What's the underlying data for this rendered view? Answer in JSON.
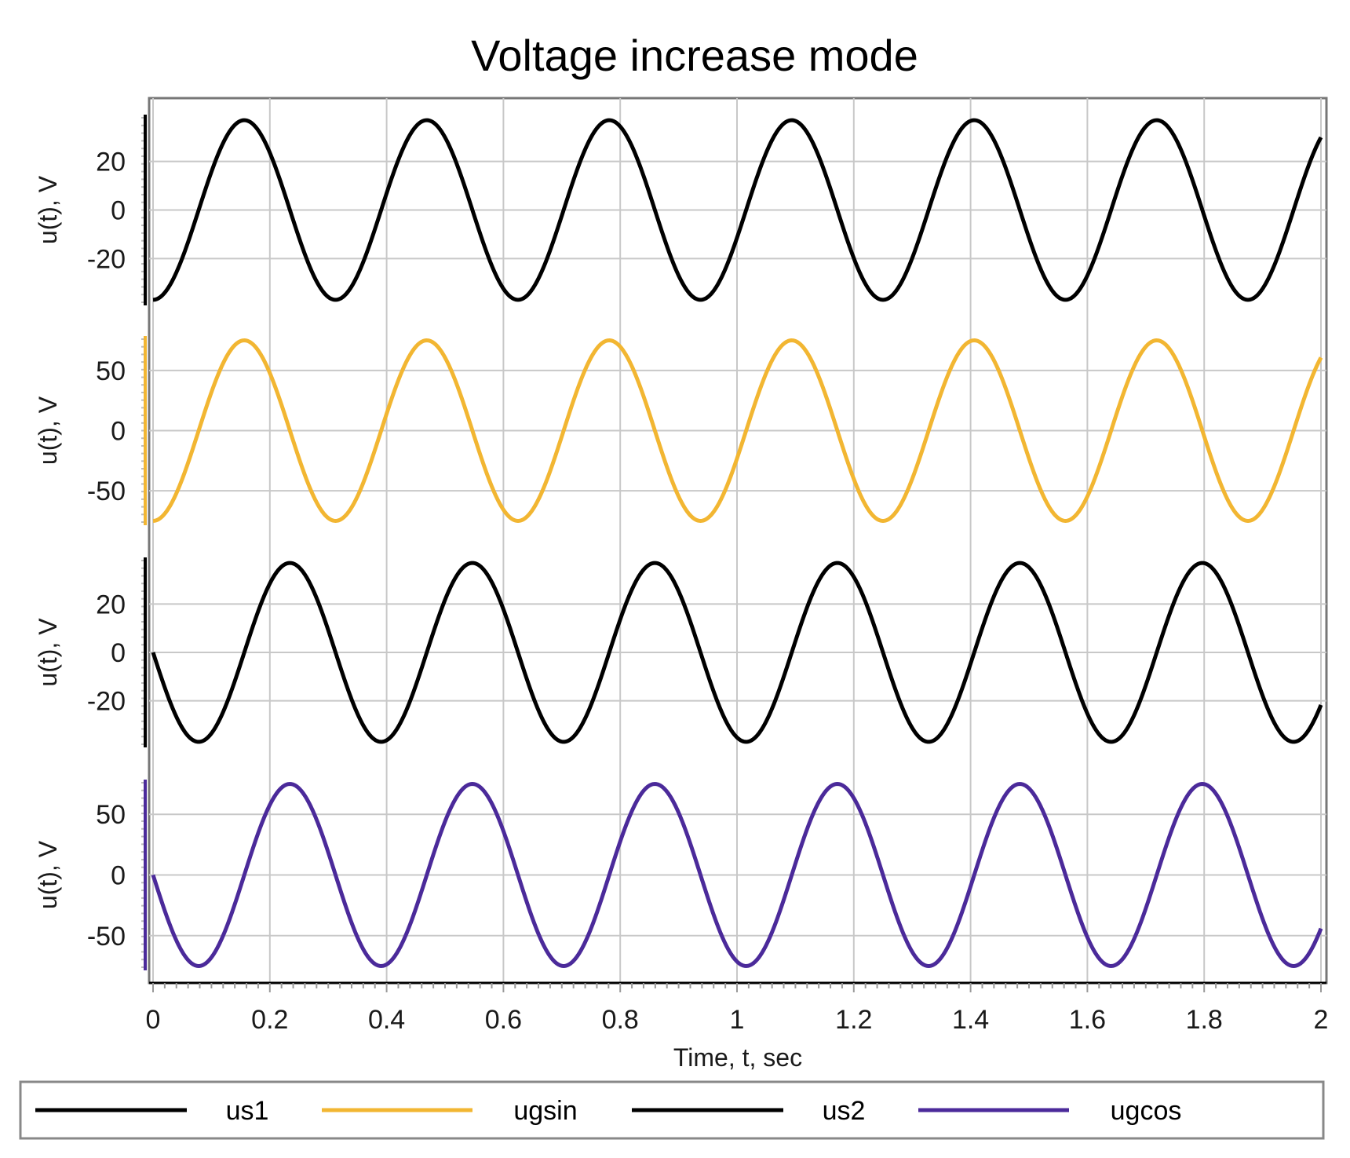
{
  "chart_data": {
    "type": "line",
    "title": "Voltage increase mode",
    "xlabel": "Time, t, sec",
    "xlim": [
      0,
      2
    ],
    "x_ticks": [
      "0",
      "0.2",
      "0.4",
      "0.6",
      "0.8",
      "1",
      "1.2",
      "1.4",
      "1.6",
      "1.8",
      "2"
    ],
    "x_tick_values": [
      0,
      0.2,
      0.4,
      0.6,
      0.8,
      1.0,
      1.2,
      1.4,
      1.6,
      1.8,
      2.0
    ],
    "grid": true,
    "legend_position": "bottom",
    "panels": [
      {
        "series": "us1",
        "color": "#000000",
        "ylabel": "u(t), V",
        "ylim": [
          -38,
          38
        ],
        "y_ticks": [
          "20",
          "0",
          "-20"
        ],
        "y_tick_values": [
          20,
          0,
          -20
        ],
        "amplitude": 37,
        "frequency_hz": 3.2,
        "phase_sin_deg": -90,
        "points_note": "sinusoid, peaks at t≈0.16, 0.47, 0.78, 1.10, 1.41, 1.72"
      },
      {
        "series": "ugsin",
        "color": "#f2b632",
        "ylabel": "u(t), V",
        "ylim": [
          -76,
          76
        ],
        "y_ticks": [
          "50",
          "0",
          "-50"
        ],
        "y_tick_values": [
          50,
          0,
          -50
        ],
        "amplitude": 75,
        "frequency_hz": 3.2,
        "phase_sin_deg": -90,
        "points_note": "sinusoid, peaks at t≈0.16, 0.47, 0.78, 1.10, 1.41, 1.72"
      },
      {
        "series": "us2",
        "color": "#000000",
        "ylabel": "u(t), V",
        "ylim": [
          -38,
          38
        ],
        "y_ticks": [
          "20",
          "0",
          "-20"
        ],
        "y_tick_values": [
          20,
          0,
          -20
        ],
        "amplitude": 37,
        "frequency_hz": 3.2,
        "phase_sin_deg": 180,
        "points_note": "sinusoid starting at 0 going down, troughs at t≈0.08, 0.39, 0.70"
      },
      {
        "series": "ugcos",
        "color": "#4b2a9a",
        "ylabel": "u(t), V",
        "ylim": [
          -76,
          76
        ],
        "y_ticks": [
          "50",
          "0",
          "-50"
        ],
        "y_tick_values": [
          50,
          0,
          -50
        ],
        "amplitude": 75,
        "frequency_hz": 3.2,
        "phase_sin_deg": 180,
        "points_note": "sinusoid starting at 0 going down, troughs at t≈0.08, 0.39, 0.70"
      }
    ],
    "legend": [
      {
        "name": "us1",
        "color": "#000000"
      },
      {
        "name": "ugsin",
        "color": "#f2b632"
      },
      {
        "name": "us2",
        "color": "#000000"
      },
      {
        "name": "ugcos",
        "color": "#4b2a9a"
      }
    ]
  }
}
